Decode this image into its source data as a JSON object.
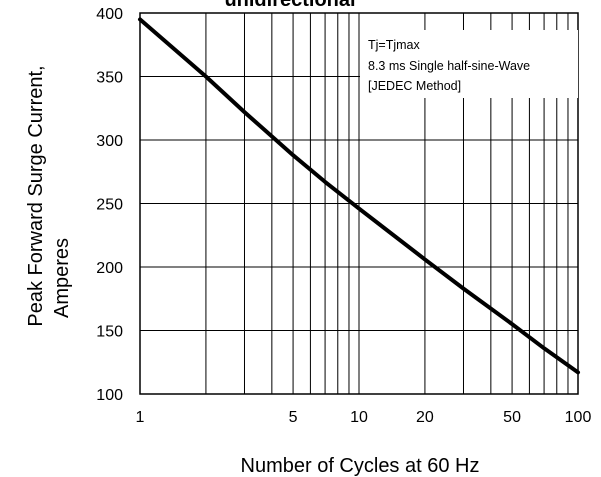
{
  "chart_data": {
    "type": "line",
    "title": "unidirectional",
    "xlabel": "Number of Cycles at 60 Hz",
    "ylabel_lines": [
      "Peak Forward Surge Current,",
      "Amperes"
    ],
    "x_scale": "log",
    "xlim": [
      1,
      100
    ],
    "ylim": [
      100,
      400
    ],
    "x_ticks": [
      1,
      5,
      10,
      20,
      50,
      100
    ],
    "x_tick_labels": [
      "1",
      "5",
      "10",
      "20",
      "50",
      "100"
    ],
    "y_ticks": [
      100,
      150,
      200,
      250,
      300,
      350,
      400
    ],
    "y_tick_labels": [
      "100",
      "150",
      "200",
      "250",
      "300",
      "350",
      "400"
    ],
    "grid": true,
    "annotations": [
      "Tj=Tjmax",
      "8.3 ms Single half-sine-Wave",
      "[JEDEC Method]"
    ],
    "series": [
      {
        "x": [
          1,
          2,
          3,
          5,
          7,
          10,
          20,
          30,
          50,
          70,
          100
        ],
        "y": [
          395,
          350,
          322,
          288,
          267,
          246,
          206,
          183,
          155,
          136,
          117
        ]
      }
    ]
  }
}
